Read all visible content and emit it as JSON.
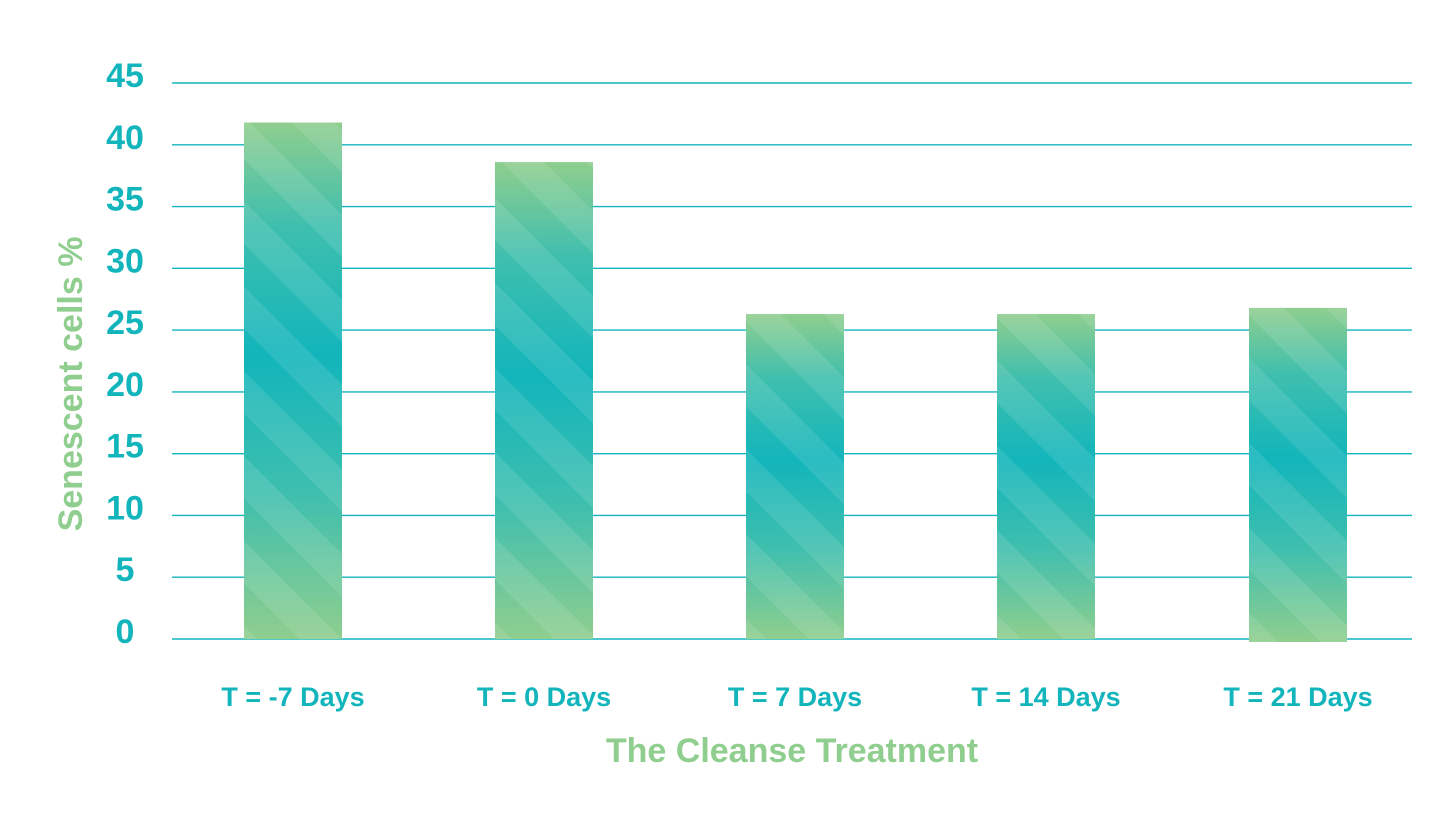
{
  "chart_data": {
    "type": "bar",
    "categories": [
      "T = -7 Days",
      "T = 0 Days",
      "T = 7 Days",
      "T = 14 Days",
      "T = 21 Days"
    ],
    "values": [
      41.8,
      38.6,
      26.3,
      26.3,
      26.8
    ],
    "xlabel": "The Cleanse Treatment",
    "ylabel": "Senescent cells %",
    "ylim": [
      0,
      45
    ],
    "yticks": [
      0,
      5,
      10,
      15,
      20,
      25,
      30,
      35,
      40,
      45
    ],
    "grid": true,
    "legend": "none",
    "colors": {
      "bar_light": "#8fce8e",
      "bar_mid": "#52c4a6",
      "bar_dark": "#12b5bb",
      "grid": "#12b5bb",
      "tick_text": "#12b5bb",
      "axis_title": "#8fce8e"
    }
  }
}
